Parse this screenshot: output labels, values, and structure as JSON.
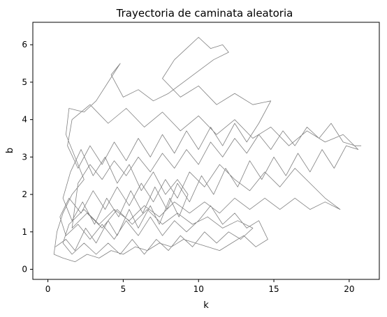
{
  "chart_data": {
    "type": "line",
    "title": "Trayectoria de caminata aleatoria",
    "xlabel": "k",
    "ylabel": "b",
    "xlim": [
      -1.0,
      22.0
    ],
    "ylim": [
      -0.27,
      6.6
    ],
    "xticks": [
      0,
      5,
      10,
      15,
      20
    ],
    "yticks": [
      0,
      1,
      2,
      3,
      4,
      5,
      6
    ],
    "line_color": "#808080",
    "grid": false,
    "legend": "none",
    "series": [
      {
        "points": [
          [
            0.5,
            0.6
          ],
          [
            1.2,
            0.8
          ],
          [
            1.8,
            0.5
          ],
          [
            2.5,
            1.1
          ],
          [
            3.2,
            0.7
          ],
          [
            4.0,
            1.3
          ],
          [
            4.6,
            0.9
          ],
          [
            5.4,
            1.6
          ],
          [
            6.0,
            1.1
          ],
          [
            6.8,
            1.7
          ],
          [
            7.4,
            1.2
          ],
          [
            8.1,
            1.9
          ],
          [
            8.7,
            1.4
          ],
          [
            9.3,
            2.0
          ],
          [
            8.6,
            2.4
          ],
          [
            7.8,
            2.0
          ],
          [
            7.0,
            2.6
          ],
          [
            6.2,
            2.1
          ],
          [
            5.4,
            2.8
          ],
          [
            4.6,
            2.3
          ],
          [
            3.8,
            3.0
          ],
          [
            3.0,
            2.5
          ],
          [
            2.2,
            3.2
          ],
          [
            1.5,
            2.6
          ],
          [
            1.0,
            1.9
          ],
          [
            1.6,
            1.3
          ],
          [
            2.3,
            1.8
          ],
          [
            3.1,
            1.2
          ],
          [
            3.9,
            1.9
          ],
          [
            4.7,
            1.4
          ],
          [
            5.5,
            2.1
          ],
          [
            6.3,
            1.5
          ],
          [
            7.1,
            2.2
          ],
          [
            7.9,
            1.6
          ],
          [
            8.6,
            2.3
          ],
          [
            9.4,
            1.8
          ],
          [
            10.2,
            2.5
          ],
          [
            11.0,
            2.0
          ],
          [
            11.8,
            2.7
          ],
          [
            12.6,
            2.2
          ],
          [
            13.4,
            2.9
          ],
          [
            14.2,
            2.4
          ],
          [
            15.0,
            3.0
          ],
          [
            15.8,
            2.5
          ],
          [
            16.6,
            3.1
          ],
          [
            17.4,
            2.6
          ],
          [
            18.2,
            3.2
          ],
          [
            19.0,
            2.7
          ],
          [
            19.8,
            3.3
          ],
          [
            20.6,
            3.2
          ],
          [
            19.6,
            3.6
          ],
          [
            18.4,
            3.4
          ],
          [
            17.2,
            3.7
          ],
          [
            16.0,
            3.3
          ],
          [
            14.8,
            3.8
          ],
          [
            13.6,
            3.5
          ],
          [
            12.4,
            4.0
          ],
          [
            11.2,
            3.6
          ],
          [
            10.0,
            4.1
          ],
          [
            8.8,
            3.7
          ],
          [
            7.6,
            4.2
          ],
          [
            6.4,
            3.8
          ],
          [
            5.2,
            4.3
          ],
          [
            4.0,
            3.9
          ],
          [
            2.8,
            4.4
          ],
          [
            1.6,
            4.0
          ],
          [
            1.3,
            3.3
          ],
          [
            2.0,
            2.7
          ],
          [
            2.8,
            3.3
          ],
          [
            3.6,
            2.8
          ],
          [
            4.4,
            3.4
          ],
          [
            5.2,
            2.9
          ],
          [
            6.0,
            3.5
          ],
          [
            6.8,
            3.0
          ],
          [
            7.6,
            3.6
          ],
          [
            8.4,
            3.1
          ],
          [
            9.2,
            3.7
          ],
          [
            10.0,
            3.2
          ],
          [
            10.8,
            3.8
          ],
          [
            11.6,
            3.3
          ],
          [
            12.4,
            3.9
          ],
          [
            13.2,
            3.4
          ],
          [
            14.0,
            3.9
          ],
          [
            14.8,
            4.5
          ],
          [
            13.6,
            4.4
          ],
          [
            12.4,
            4.7
          ],
          [
            11.2,
            4.4
          ],
          [
            10.0,
            4.9
          ],
          [
            8.8,
            4.6
          ],
          [
            7.6,
            5.1
          ],
          [
            8.4,
            5.6
          ],
          [
            9.2,
            5.9
          ],
          [
            10.0,
            6.2
          ],
          [
            10.8,
            5.9
          ],
          [
            11.6,
            6.0
          ],
          [
            12.0,
            5.8
          ],
          [
            11.0,
            5.6
          ],
          [
            10.0,
            5.3
          ],
          [
            9.0,
            5.0
          ],
          [
            8.0,
            4.7
          ],
          [
            7.0,
            4.5
          ],
          [
            6.0,
            4.8
          ],
          [
            5.0,
            4.6
          ],
          [
            4.2,
            5.2
          ],
          [
            4.8,
            5.5
          ],
          [
            4.0,
            5.0
          ],
          [
            3.2,
            4.5
          ],
          [
            2.4,
            4.2
          ],
          [
            1.4,
            4.3
          ],
          [
            1.2,
            3.6
          ],
          [
            1.8,
            3.0
          ],
          [
            2.4,
            2.4
          ],
          [
            1.6,
            2.0
          ],
          [
            1.0,
            1.5
          ],
          [
            0.6,
            1.0
          ],
          [
            0.4,
            0.4
          ],
          [
            1.0,
            0.3
          ],
          [
            1.8,
            0.2
          ],
          [
            2.6,
            0.4
          ],
          [
            3.4,
            0.3
          ],
          [
            4.2,
            0.5
          ],
          [
            5.0,
            0.4
          ],
          [
            5.8,
            0.6
          ],
          [
            6.6,
            0.5
          ],
          [
            7.4,
            0.7
          ],
          [
            8.2,
            0.6
          ],
          [
            9.0,
            0.8
          ],
          [
            9.8,
            0.7
          ],
          [
            10.6,
            0.6
          ],
          [
            11.4,
            0.5
          ],
          [
            12.2,
            0.7
          ],
          [
            13.0,
            0.9
          ],
          [
            13.8,
            0.6
          ],
          [
            14.6,
            0.8
          ],
          [
            14.0,
            1.3
          ],
          [
            13.2,
            1.1
          ],
          [
            12.4,
            1.5
          ],
          [
            11.6,
            1.2
          ],
          [
            10.8,
            1.7
          ],
          [
            10.0,
            1.3
          ],
          [
            9.2,
            1.0
          ],
          [
            8.4,
            1.3
          ],
          [
            7.6,
            0.9
          ],
          [
            6.8,
            1.4
          ],
          [
            6.0,
            0.9
          ],
          [
            5.2,
            1.3
          ],
          [
            4.4,
            0.8
          ],
          [
            3.6,
            1.2
          ],
          [
            2.8,
            0.8
          ],
          [
            2.0,
            1.2
          ],
          [
            1.2,
            0.9
          ],
          [
            0.8,
            1.4
          ],
          [
            1.4,
            1.9
          ],
          [
            2.2,
            1.5
          ],
          [
            3.0,
            2.1
          ],
          [
            3.8,
            1.6
          ],
          [
            4.6,
            2.2
          ],
          [
            5.4,
            1.7
          ],
          [
            6.2,
            2.3
          ],
          [
            7.0,
            1.8
          ],
          [
            7.8,
            2.4
          ],
          [
            8.6,
            1.9
          ],
          [
            9.4,
            2.6
          ],
          [
            10.4,
            2.2
          ],
          [
            11.4,
            2.8
          ],
          [
            12.4,
            2.4
          ],
          [
            13.4,
            2.1
          ],
          [
            14.4,
            2.6
          ],
          [
            15.4,
            2.2
          ],
          [
            16.4,
            2.7
          ],
          [
            17.4,
            2.3
          ],
          [
            18.4,
            1.9
          ],
          [
            19.4,
            1.6
          ],
          [
            18.4,
            1.8
          ],
          [
            17.4,
            1.6
          ],
          [
            16.4,
            1.9
          ],
          [
            15.4,
            1.6
          ],
          [
            14.4,
            1.9
          ],
          [
            13.4,
            1.6
          ],
          [
            12.4,
            1.9
          ],
          [
            11.4,
            1.5
          ],
          [
            10.4,
            1.8
          ],
          [
            9.4,
            1.5
          ],
          [
            8.4,
            1.8
          ],
          [
            7.4,
            1.4
          ],
          [
            6.4,
            1.7
          ],
          [
            5.4,
            1.3
          ],
          [
            4.4,
            1.6
          ],
          [
            3.4,
            1.2
          ],
          [
            2.4,
            1.6
          ],
          [
            1.4,
            1.2
          ],
          [
            1.0,
            0.7
          ],
          [
            1.6,
            0.4
          ],
          [
            2.4,
            0.7
          ],
          [
            3.2,
            0.4
          ],
          [
            4.0,
            0.7
          ],
          [
            4.8,
            0.4
          ],
          [
            5.6,
            0.8
          ],
          [
            6.4,
            0.4
          ],
          [
            7.2,
            0.8
          ],
          [
            8.0,
            0.5
          ],
          [
            8.8,
            0.9
          ],
          [
            9.6,
            0.6
          ],
          [
            10.4,
            1.0
          ],
          [
            11.2,
            0.7
          ],
          [
            12.0,
            1.0
          ],
          [
            12.8,
            0.8
          ],
          [
            13.6,
            1.1
          ],
          [
            12.6,
            1.3
          ],
          [
            11.6,
            1.1
          ],
          [
            10.6,
            1.4
          ],
          [
            9.6,
            1.2
          ],
          [
            8.6,
            1.5
          ],
          [
            7.6,
            1.2
          ],
          [
            6.6,
            1.6
          ],
          [
            5.6,
            1.2
          ],
          [
            4.6,
            1.6
          ],
          [
            3.6,
            1.1
          ],
          [
            2.6,
            1.5
          ],
          [
            1.6,
            1.1
          ],
          [
            2.0,
            2.3
          ],
          [
            2.8,
            2.8
          ],
          [
            3.6,
            2.4
          ],
          [
            4.4,
            2.9
          ],
          [
            5.2,
            2.5
          ],
          [
            6.0,
            3.0
          ],
          [
            6.8,
            2.6
          ],
          [
            7.6,
            3.1
          ],
          [
            8.4,
            2.7
          ],
          [
            9.2,
            3.2
          ],
          [
            10.0,
            2.8
          ],
          [
            10.8,
            3.4
          ],
          [
            11.6,
            3.0
          ],
          [
            12.4,
            3.5
          ],
          [
            13.2,
            3.1
          ],
          [
            14.0,
            3.6
          ],
          [
            14.8,
            3.2
          ],
          [
            15.6,
            3.7
          ],
          [
            16.4,
            3.3
          ],
          [
            17.2,
            3.8
          ],
          [
            18.0,
            3.5
          ],
          [
            18.8,
            3.9
          ],
          [
            19.6,
            3.4
          ],
          [
            20.4,
            3.3
          ],
          [
            20.8,
            3.3
          ]
        ]
      }
    ]
  }
}
